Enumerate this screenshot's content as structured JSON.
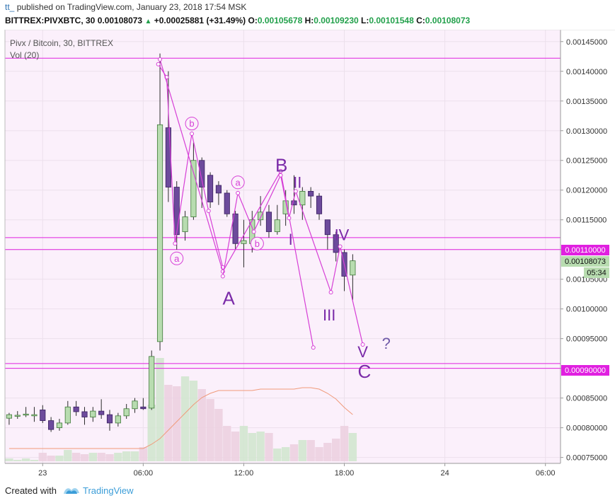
{
  "header": {
    "author": "tt_",
    "published_text": "published on TradingView.com, January 23, 2018 17:54 MSK",
    "symbol": "BITTREX:PIVXBTC, 30",
    "last": "0.00108073",
    "change": "+0.00025881 (+31.49%)",
    "o_label": "O:",
    "o_value": "0.00105678",
    "h_label": "H:",
    "h_value": "0.00109230",
    "l_label": "L:",
    "l_value": "0.00101548",
    "c_label": "C:",
    "c_value": "0.00108073"
  },
  "legend": {
    "title": "Pivx / Bitcoin, 30, BITTREX",
    "vol": "Vol (20)"
  },
  "price_badges": {
    "level_1100": "0.00110000",
    "last": "0.00108073",
    "countdown": "05:34",
    "level_900": "0.00090000"
  },
  "footer": {
    "created_with": "Created with",
    "brand": "TradingView"
  },
  "colors": {
    "background": "#fbf0fb",
    "bull": "#b8dcb0",
    "bear": "#6d4a9c",
    "wave": "#d63fd6",
    "label": "#7a2aa8",
    "level": "#e020e0",
    "ma": "#f09a7a"
  },
  "chart_data": {
    "type": "candlestick",
    "y_axis_side": "right",
    "ylim": [
      0.00074,
      0.00147
    ],
    "y_ticks": [
      "0.00145000",
      "0.00140000",
      "0.00135000",
      "0.00130000",
      "0.00125000",
      "0.00120000",
      "0.00115000",
      "0.00110000",
      "0.00105000",
      "0.00100000",
      "0.00095000",
      "0.00090000",
      "0.00085000",
      "0.00080000",
      "0.00075000"
    ],
    "x_ticks": [
      {
        "label": "23",
        "idx": 4
      },
      {
        "label": "06:00",
        "idx": 16
      },
      {
        "label": "12:00",
        "idx": 28
      },
      {
        "label": "18:00",
        "idx": 40
      },
      {
        "label": "24",
        "idx": 52
      },
      {
        "label": "06:00",
        "idx": 64
      }
    ],
    "x_range": [
      -0.5,
      65.8
    ],
    "candles": [
      {
        "o": 0.000816,
        "h": 0.000825,
        "l": 0.000805,
        "c": 0.000822
      },
      {
        "o": 0.00082,
        "h": 0.000828,
        "l": 0.000815,
        "c": 0.000821
      },
      {
        "o": 0.000822,
        "h": 0.000835,
        "l": 0.000818,
        "c": 0.000823
      },
      {
        "o": 0.00082,
        "h": 0.000835,
        "l": 0.00081,
        "c": 0.000822
      },
      {
        "o": 0.00083,
        "h": 0.000838,
        "l": 0.000808,
        "c": 0.000812
      },
      {
        "o": 0.000812,
        "h": 0.000818,
        "l": 0.000793,
        "c": 0.000797
      },
      {
        "o": 0.0008,
        "h": 0.000815,
        "l": 0.000795,
        "c": 0.000808
      },
      {
        "o": 0.000808,
        "h": 0.000845,
        "l": 0.000805,
        "c": 0.000835
      },
      {
        "o": 0.000835,
        "h": 0.000845,
        "l": 0.00082,
        "c": 0.000827
      },
      {
        "o": 0.000827,
        "h": 0.000835,
        "l": 0.000805,
        "c": 0.000818
      },
      {
        "o": 0.000818,
        "h": 0.000835,
        "l": 0.00081,
        "c": 0.000828
      },
      {
        "o": 0.000828,
        "h": 0.000848,
        "l": 0.000815,
        "c": 0.000822
      },
      {
        "o": 0.000822,
        "h": 0.00083,
        "l": 0.000795,
        "c": 0.000808
      },
      {
        "o": 0.000808,
        "h": 0.000825,
        "l": 0.000802,
        "c": 0.00082
      },
      {
        "o": 0.00082,
        "h": 0.00084,
        "l": 0.000815,
        "c": 0.000832
      },
      {
        "o": 0.000832,
        "h": 0.00085,
        "l": 0.000825,
        "c": 0.000845
      },
      {
        "o": 0.000835,
        "h": 0.00085,
        "l": 0.00083,
        "c": 0.000832
      },
      {
        "o": 0.000833,
        "h": 0.00093,
        "l": 0.00083,
        "c": 0.00092
      },
      {
        "o": 0.000945,
        "h": 0.00143,
        "l": 0.00093,
        "c": 0.00131
      },
      {
        "o": 0.001305,
        "h": 0.0014,
        "l": 0.00118,
        "c": 0.001205
      },
      {
        "o": 0.001205,
        "h": 0.001215,
        "l": 0.0011,
        "c": 0.001125
      },
      {
        "o": 0.00113,
        "h": 0.001165,
        "l": 0.001115,
        "c": 0.001155
      },
      {
        "o": 0.001155,
        "h": 0.00128,
        "l": 0.00115,
        "c": 0.00125
      },
      {
        "o": 0.00125,
        "h": 0.001255,
        "l": 0.00117,
        "c": 0.001205
      },
      {
        "o": 0.001225,
        "h": 0.00123,
        "l": 0.00117,
        "c": 0.00118
      },
      {
        "o": 0.001208,
        "h": 0.001215,
        "l": 0.001175,
        "c": 0.001195
      },
      {
        "o": 0.001195,
        "h": 0.0012,
        "l": 0.001155,
        "c": 0.00116
      },
      {
        "o": 0.00116,
        "h": 0.001165,
        "l": 0.0011,
        "c": 0.00111
      },
      {
        "o": 0.00111,
        "h": 0.00115,
        "l": 0.00107,
        "c": 0.001115
      },
      {
        "o": 0.00111,
        "h": 0.001165,
        "l": 0.001095,
        "c": 0.00115
      },
      {
        "o": 0.00115,
        "h": 0.00119,
        "l": 0.00114,
        "c": 0.001163
      },
      {
        "o": 0.001163,
        "h": 0.001175,
        "l": 0.00112,
        "c": 0.00113
      },
      {
        "o": 0.00113,
        "h": 0.001175,
        "l": 0.001125,
        "c": 0.00115
      },
      {
        "o": 0.00116,
        "h": 0.0012,
        "l": 0.00114,
        "c": 0.001182
      },
      {
        "o": 0.001182,
        "h": 0.001225,
        "l": 0.00116,
        "c": 0.001175
      },
      {
        "o": 0.001175,
        "h": 0.001205,
        "l": 0.00115,
        "c": 0.001198
      },
      {
        "o": 0.001198,
        "h": 0.001205,
        "l": 0.00117,
        "c": 0.00119
      },
      {
        "o": 0.00119,
        "h": 0.001195,
        "l": 0.00115,
        "c": 0.00116
      },
      {
        "o": 0.00115,
        "h": 0.00115,
        "l": 0.0011,
        "c": 0.001125
      },
      {
        "o": 0.001125,
        "h": 0.00113,
        "l": 0.00108,
        "c": 0.001095
      },
      {
        "o": 0.001095,
        "h": 0.0011,
        "l": 0.00103,
        "c": 0.001055
      },
      {
        "o": 0.001057,
        "h": 0.001092,
        "l": 0.001015,
        "c": 0.001081
      }
    ],
    "volumes": [
      2,
      1,
      2,
      1,
      6,
      4,
      4,
      8,
      6,
      5,
      6,
      6,
      5,
      6,
      7,
      7,
      10,
      40,
      73,
      54,
      53,
      60,
      57,
      51,
      44,
      37,
      25,
      21,
      25,
      20,
      21,
      20,
      9,
      10,
      12,
      15,
      15,
      10,
      13,
      16,
      25,
      20
    ],
    "vol_max": 100,
    "ma_volume": [
      9,
      9,
      9,
      9,
      9,
      9,
      9,
      9,
      9,
      9,
      9,
      9,
      9,
      9,
      9,
      9,
      9,
      12,
      16,
      22,
      28,
      34,
      40,
      45,
      48,
      50,
      50,
      50,
      50,
      50,
      51,
      51,
      51,
      51,
      51,
      52,
      52,
      51,
      48,
      44,
      38,
      33
    ],
    "horizontal_levels": [
      0.001422,
      0.00112,
      0.0011,
      0.000908,
      0.0009
    ],
    "waves": [
      {
        "points": [
          [
            17.8,
            0.001412
          ],
          [
            18.8,
            0.00139
          ],
          [
            19.8,
            0.00111
          ],
          [
            21.8,
            0.001295
          ],
          [
            23.8,
            0.001165
          ],
          [
            25.5,
            0.00107
          ]
        ]
      },
      {
        "points": [
          [
            18,
            0.00142
          ],
          [
            25.5,
            0.001063
          ],
          [
            32.4,
            0.001232
          ],
          [
            36.3,
            0.000935
          ]
        ]
      },
      {
        "points": [
          [
            25.5,
            0.001055
          ],
          [
            27.3,
            0.001195
          ],
          [
            29.2,
            0.00113
          ],
          [
            32.4,
            0.001225
          ],
          [
            33.4,
            0.001153
          ],
          [
            34.2,
            0.001198
          ],
          [
            38.4,
            0.001028
          ],
          [
            39.5,
            0.001105
          ],
          [
            42.2,
            0.00094
          ]
        ]
      }
    ],
    "labels": [
      {
        "text": "b",
        "x": 21.8,
        "y": 0.001312,
        "circled": true,
        "size": "small"
      },
      {
        "text": "a",
        "x": 20.0,
        "y": 0.001085,
        "circled": true,
        "size": "small"
      },
      {
        "text": "a",
        "x": 27.3,
        "y": 0.001213,
        "circled": true,
        "size": "small"
      },
      {
        "text": "b",
        "x": 29.6,
        "y": 0.00111,
        "circled": true,
        "size": "small"
      },
      {
        "text": "A",
        "x": 26.2,
        "y": 0.001018,
        "circled": false,
        "size": "large"
      },
      {
        "text": "B",
        "x": 32.5,
        "y": 0.001242,
        "circled": false,
        "size": "large"
      },
      {
        "text": "I",
        "x": 33.6,
        "y": 0.001117,
        "circled": false,
        "size": "medium"
      },
      {
        "text": "II",
        "x": 34.4,
        "y": 0.001213,
        "circled": false,
        "size": "medium"
      },
      {
        "text": "III",
        "x": 38.2,
        "y": 0.00099,
        "circled": false,
        "size": "medium"
      },
      {
        "text": "IV",
        "x": 39.7,
        "y": 0.001125,
        "circled": false,
        "size": "medium"
      },
      {
        "text": "V",
        "x": 42.2,
        "y": 0.000928,
        "circled": false,
        "size": "medium"
      },
      {
        "text": "C",
        "x": 42.4,
        "y": 0.000895,
        "circled": false,
        "size": "large"
      },
      {
        "text": "?",
        "x": 45.0,
        "y": 0.000942,
        "circled": false,
        "size": "question"
      }
    ]
  }
}
